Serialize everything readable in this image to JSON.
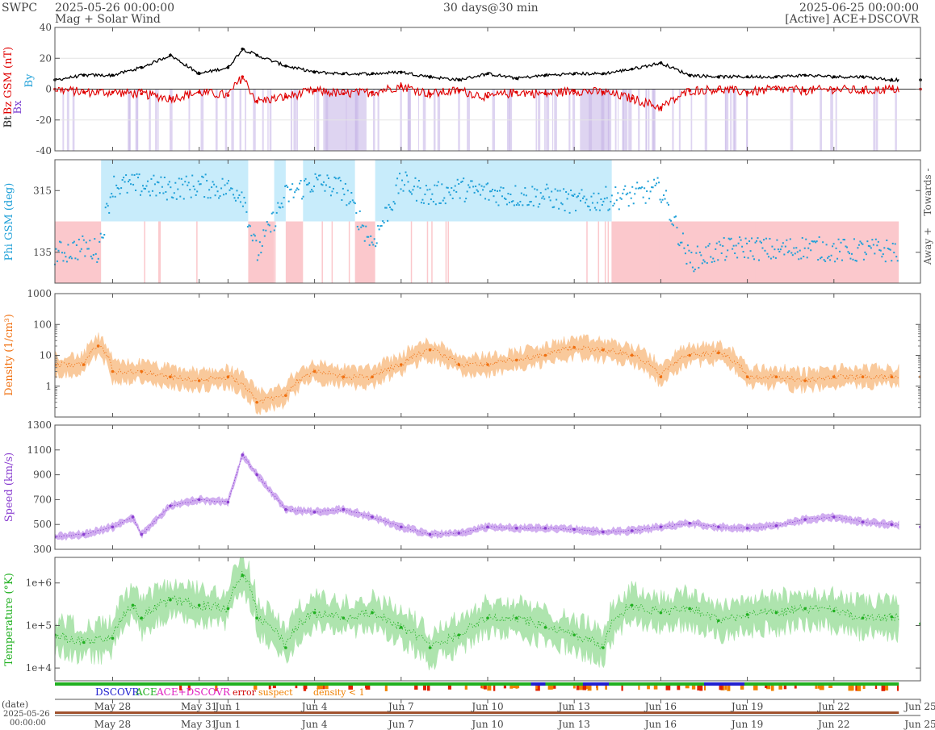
{
  "header": {
    "org": "SWPC",
    "start": "2025-05-26 00:00:00",
    "subtitle": "Mag + Solar Wind",
    "span": "30 days@30 min",
    "end": "2025-06-25 00:00:00",
    "source": "[Active] ACE+DSCOVR"
  },
  "legend": {
    "dscovr": "DSCOVR",
    "ace": "ACE",
    "acedscovr": "ACE+DSCOVR",
    "error": "error",
    "suspect": "suspect",
    "density": "density < 1"
  },
  "bottom": {
    "date_label": "(date)",
    "start_date": "2025-05-26",
    "start_time": "00:00:00"
  },
  "colors": {
    "bt": "#000000",
    "bz": "#e00000",
    "bz_fill": "#f4a0a8",
    "bx_fill": "#c8b8e8",
    "phi": "#1fa0d8",
    "towards": "#c8ecfb",
    "away": "#fbc8cc",
    "density": "#f07010",
    "density_fill": "#f9c08a",
    "speed": "#8a3fd0",
    "speed_fill": "#c9a0ee",
    "temp": "#20b020",
    "temp_fill": "#a0e0a0",
    "src_ace": "#20b020",
    "src_dscovr": "#2020d0",
    "flag_red": "#e02000",
    "flag_orange": "#f08000"
  },
  "chart_data": [
    {
      "type": "line",
      "name": "mag",
      "ylabel_parts": [
        "Bt",
        "Bz GSM (nT)",
        "Bx",
        "By"
      ],
      "ylim": [
        -40,
        40
      ],
      "ticks": [
        -40,
        -20,
        0,
        20,
        40
      ],
      "series": [
        {
          "name": "Bt",
          "x": [
            0,
            1,
            2,
            3,
            4,
            5,
            6,
            6.5,
            7,
            8,
            9,
            10,
            11,
            12,
            13,
            14,
            15,
            16,
            17,
            18,
            19,
            20,
            21,
            22,
            23,
            24,
            25,
            26,
            27,
            28,
            29,
            30
          ],
          "values": [
            6,
            9,
            9,
            14,
            22,
            10,
            14,
            26,
            22,
            15,
            11,
            10,
            10,
            11,
            8,
            6,
            10,
            7,
            9,
            10,
            10,
            13,
            17,
            9,
            8,
            8,
            8,
            9,
            8,
            8,
            6,
            6
          ]
        },
        {
          "name": "Bz",
          "x": [
            0,
            1,
            2,
            3,
            4,
            5,
            6,
            6.5,
            7,
            8,
            9,
            10,
            11,
            12,
            13,
            14,
            15,
            16,
            17,
            18,
            19,
            20,
            21,
            22,
            23,
            24,
            25,
            26,
            27,
            28,
            29,
            30
          ],
          "values": [
            0,
            -2,
            -2,
            -3,
            -6,
            -2,
            -4,
            8,
            -8,
            -5,
            -1,
            -3,
            -2,
            2,
            -3,
            -1,
            -5,
            -2,
            -3,
            -1,
            -2,
            -6,
            -12,
            -1,
            0,
            -2,
            0,
            -1,
            0,
            -1,
            0,
            0
          ]
        }
      ]
    },
    {
      "type": "scatter",
      "name": "phi",
      "ylabel": "Phi GSM (deg)",
      "ylim": [
        45,
        405
      ],
      "ticks": [
        135,
        315
      ],
      "side_labels": [
        "Towards -",
        "Away +"
      ],
      "x": [
        0,
        1,
        1.5,
        2,
        3,
        4,
        5,
        6,
        6.5,
        7,
        8,
        9,
        10,
        11,
        12,
        13,
        14,
        15,
        16,
        17,
        18,
        19,
        20,
        21,
        22,
        23,
        24,
        25,
        26,
        27,
        28,
        29,
        30
      ],
      "values": [
        130,
        150,
        140,
        330,
        330,
        320,
        330,
        320,
        310,
        130,
        300,
        340,
        320,
        160,
        340,
        300,
        320,
        310,
        300,
        300,
        280,
        290,
        300,
        320,
        110,
        140,
        150,
        140,
        150,
        140,
        140,
        140,
        130
      ]
    },
    {
      "type": "line",
      "name": "density",
      "ylabel": "Density (1/cm³)",
      "scale": "log",
      "ylim": [
        0.1,
        1000
      ],
      "ticks": [
        1,
        10,
        100,
        1000
      ],
      "x": [
        0,
        1,
        1.5,
        2,
        3,
        4,
        5,
        6,
        7,
        8,
        9,
        10,
        11,
        12,
        13,
        14,
        15,
        16,
        17,
        18,
        19,
        20,
        21,
        22,
        23,
        24,
        25,
        26,
        27,
        28,
        29,
        30
      ],
      "values": [
        5,
        5,
        20,
        3,
        3,
        2,
        1.5,
        2,
        0.3,
        0.5,
        3,
        2,
        2,
        5,
        15,
        5,
        5,
        7,
        10,
        18,
        15,
        10,
        2,
        10,
        12,
        2,
        2,
        1.5,
        2,
        2,
        2,
        2
      ]
    },
    {
      "type": "line",
      "name": "speed",
      "ylabel": "Speed (km/s)",
      "ylim": [
        300,
        1300
      ],
      "ticks": [
        300,
        500,
        700,
        900,
        1100,
        1300
      ],
      "x": [
        0,
        1,
        2,
        2.7,
        3,
        4,
        5,
        6,
        6.5,
        7,
        8,
        9,
        10,
        11,
        12,
        13,
        14,
        15,
        16,
        17,
        18,
        19,
        20,
        21,
        22,
        23,
        24,
        25,
        26,
        27,
        28,
        29,
        30
      ],
      "values": [
        400,
        420,
        480,
        560,
        420,
        650,
        700,
        680,
        1060,
        900,
        620,
        600,
        620,
        560,
        480,
        420,
        430,
        480,
        470,
        470,
        460,
        440,
        450,
        480,
        510,
        480,
        470,
        490,
        540,
        560,
        520,
        500,
        480
      ]
    },
    {
      "type": "line",
      "name": "temperature",
      "ylabel": "Temperature (°K)",
      "scale": "log",
      "ylim": [
        5000,
        4000000
      ],
      "ticks": [
        "1e+4",
        "1e+5",
        "1e+6"
      ],
      "x": [
        0,
        1,
        2,
        2.7,
        3,
        4,
        5,
        6,
        6.5,
        7,
        8,
        9,
        10,
        11,
        12,
        13,
        14,
        15,
        16,
        17,
        18,
        19,
        20,
        21,
        22,
        23,
        24,
        25,
        26,
        27,
        28,
        29,
        30
      ],
      "values": [
        60000,
        40000,
        50000,
        300000,
        150000,
        400000,
        300000,
        250000,
        1500000,
        150000,
        30000,
        200000,
        150000,
        200000,
        90000,
        30000,
        60000,
        150000,
        150000,
        90000,
        60000,
        30000,
        300000,
        200000,
        250000,
        130000,
        180000,
        200000,
        250000,
        220000,
        150000,
        160000,
        110000
      ]
    }
  ],
  "xaxis": {
    "days": 30,
    "ticks": [
      {
        "t": 2,
        "label": "May 28"
      },
      {
        "t": 5,
        "label": "May 31"
      },
      {
        "t": 6,
        "label": "Jun 1"
      },
      {
        "t": 9,
        "label": "Jun 4"
      },
      {
        "t": 12,
        "label": "Jun 7"
      },
      {
        "t": 15,
        "label": "Jun 10"
      },
      {
        "t": 18,
        "label": "Jun 13"
      },
      {
        "t": 21,
        "label": "Jun 16"
      },
      {
        "t": 24,
        "label": "Jun 19"
      },
      {
        "t": 27,
        "label": "Jun 22"
      },
      {
        "t": 30,
        "label": "Jun 25"
      }
    ]
  }
}
